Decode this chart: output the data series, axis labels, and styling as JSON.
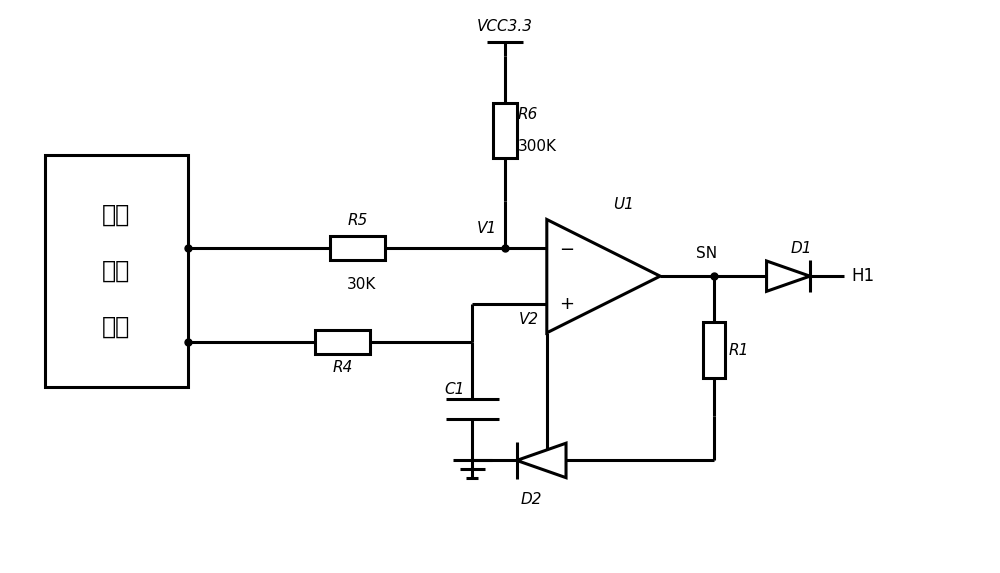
{
  "bg_color": "#ffffff",
  "line_color": "#000000",
  "line_width": 2.2,
  "fig_width": 10.0,
  "fig_height": 5.73,
  "dpi": 100,
  "labels": {
    "VCC": "VCC3.3",
    "R6": "R6",
    "R6_val": "300K",
    "R5": "R5",
    "R5_val": "30K",
    "R4": "R4",
    "C1": "C1",
    "R1": "R1",
    "D1": "D1",
    "D2": "D2",
    "U1": "U1",
    "V1": "V1",
    "V2": "V2",
    "SN": "SN",
    "H1": "H1",
    "box_lines": [
      "信号",
      "采样",
      "单元"
    ]
  }
}
